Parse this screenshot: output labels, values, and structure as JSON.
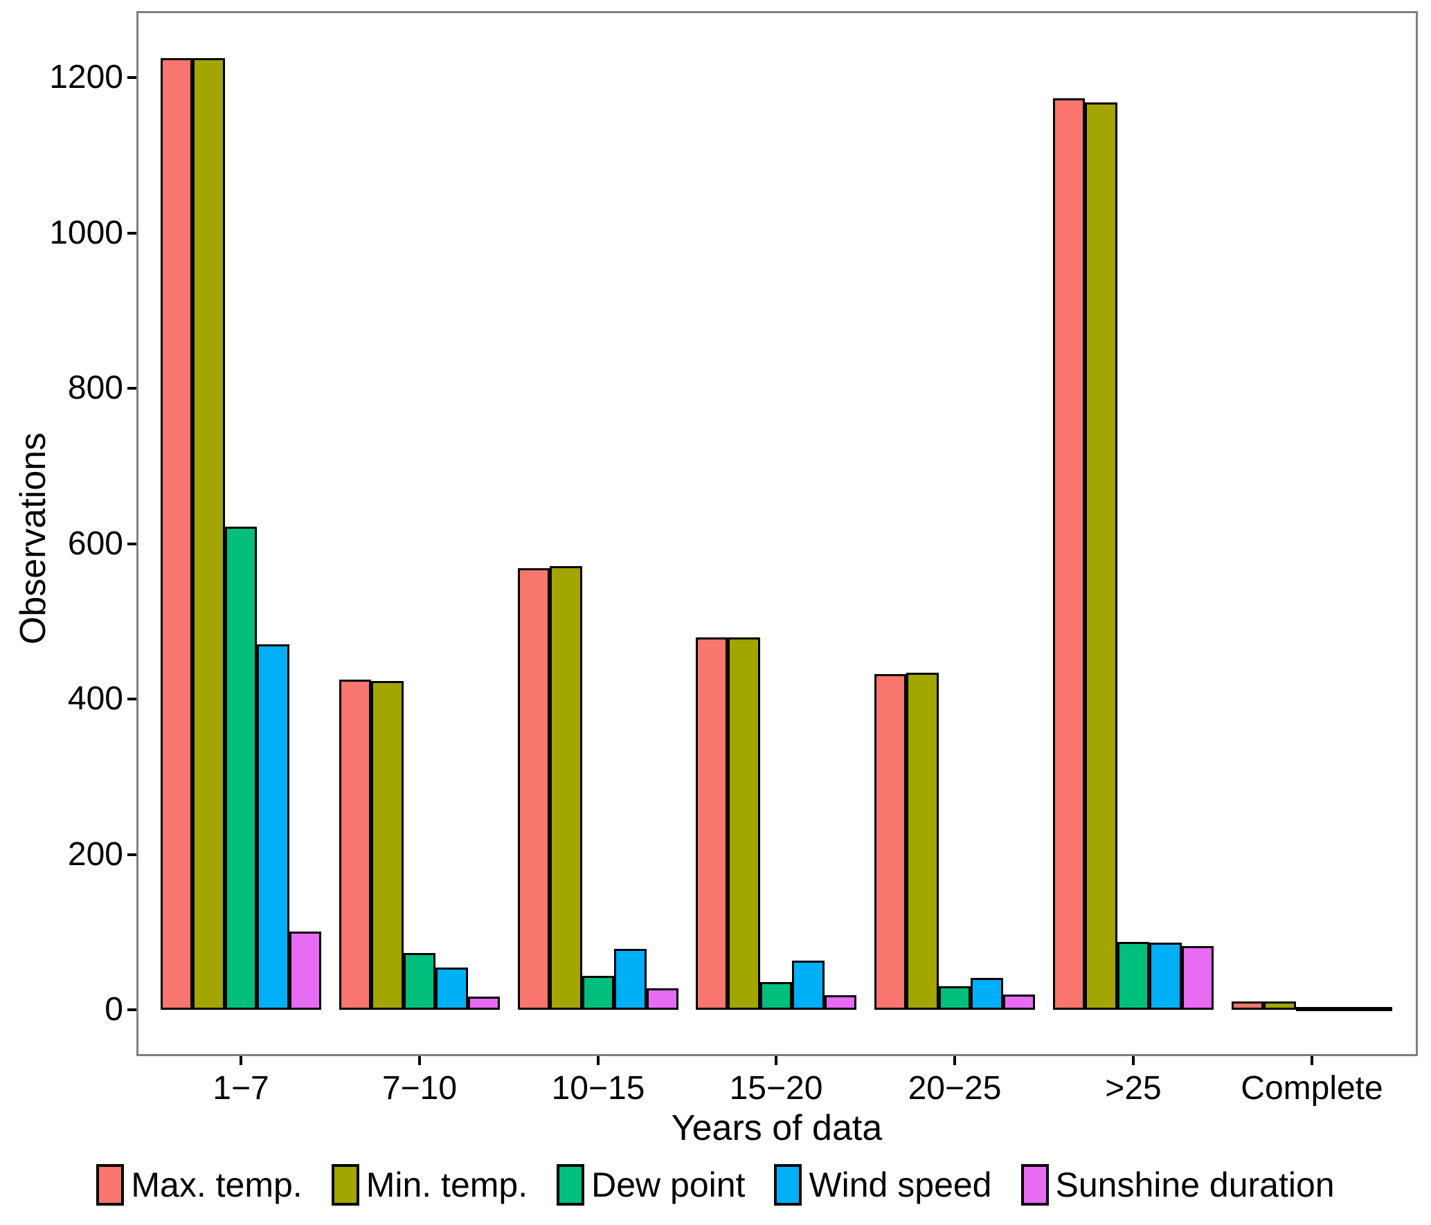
{
  "chart_data": {
    "type": "bar",
    "grouped": true,
    "title": "",
    "xlabel": "Years of data",
    "ylabel": "Observations",
    "categories": [
      "1−7",
      "7−10",
      "10−15",
      "15−20",
      "20−25",
      ">25",
      "Complete"
    ],
    "series": [
      {
        "name": "Max. temp.",
        "color": "#F8766D",
        "values": [
          1225,
          425,
          568,
          479,
          432,
          1173,
          11
        ]
      },
      {
        "name": "Min. temp.",
        "color": "#A3A500",
        "values": [
          1225,
          423,
          571,
          479,
          434,
          1168,
          11
        ]
      },
      {
        "name": "Dew point",
        "color": "#00BF7D",
        "values": [
          622,
          73,
          44,
          36,
          30,
          87,
          2
        ]
      },
      {
        "name": "Wind speed",
        "color": "#00B0F6",
        "values": [
          470,
          54,
          78,
          63,
          41,
          86,
          1
        ]
      },
      {
        "name": "Sunshine duration",
        "color": "#E76BF3",
        "values": [
          101,
          17,
          28,
          19,
          20,
          82,
          1
        ]
      }
    ],
    "yticks": [
      0,
      200,
      400,
      600,
      800,
      1000,
      1200
    ],
    "ylim": [
      0,
      1285
    ],
    "grid": false,
    "legend_position": "bottom",
    "bar_border_color": "#000000",
    "axis_text_color": "#000000",
    "panel_border_color": "#7f7f7f"
  }
}
